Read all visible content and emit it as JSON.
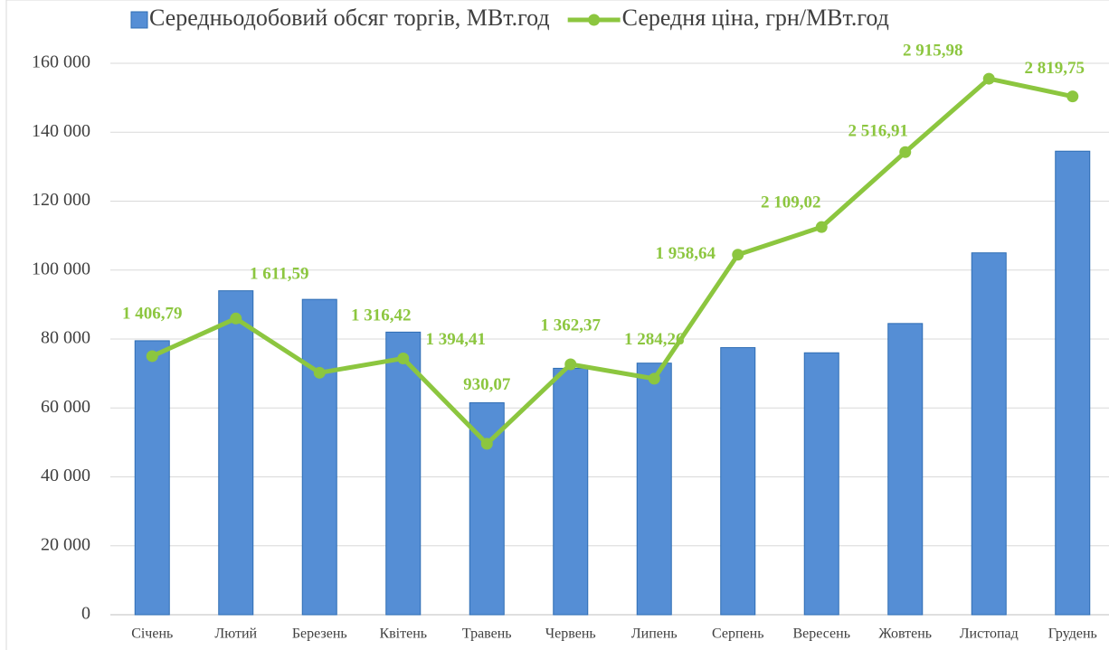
{
  "chart_data": {
    "type": "bar_line",
    "categories": [
      "Січень",
      "Лютий",
      "Березень",
      "Квітень",
      "Травень",
      "Червень",
      "Липень",
      "Серпень",
      "Вересень",
      "Жовтень",
      "Листопад",
      "Грудень"
    ],
    "series": [
      {
        "name": "Середньодобовий обсяг торгів, МВт.год",
        "color": "#558ed5",
        "type": "bar",
        "values": [
          79500,
          94000,
          91500,
          82000,
          61500,
          71500,
          73000,
          77500,
          76000,
          84500,
          105000,
          134500
        ]
      },
      {
        "name": "Середня ціна, грн/МВт.год",
        "color": "#8cc63f",
        "type": "line",
        "axis": "y2",
        "values": [
          1406.79,
          1611.59,
          1316.42,
          1394.41,
          930.07,
          1362.37,
          1284.26,
          1958.64,
          2109.02,
          2516.91,
          2915.98,
          2819.75
        ],
        "value_labels": [
          "1 406,79",
          "1 611,59",
          "1 316,42",
          "1 394,41",
          "930,07",
          "1 362,37",
          "1 284,26",
          "1 958,64",
          "2 109,02",
          "2 516,91",
          "2 915,98",
          "2 819,75"
        ]
      }
    ],
    "ylim": [
      0,
      160000
    ],
    "yticks": [
      {
        "value": 0,
        "label": "0"
      },
      {
        "value": 20000,
        "label": "20 000"
      },
      {
        "value": 40000,
        "label": "40 000"
      },
      {
        "value": 60000,
        "label": "60 000"
      },
      {
        "value": 80000,
        "label": "80 000"
      },
      {
        "value": 100000,
        "label": "100 000"
      },
      {
        "value": 120000,
        "label": "120 000"
      },
      {
        "value": 140000,
        "label": "140 000"
      },
      {
        "value": 160000,
        "label": "160 000"
      }
    ],
    "y2lim": [
      0,
      3000
    ],
    "grid": true,
    "legend": "top"
  }
}
